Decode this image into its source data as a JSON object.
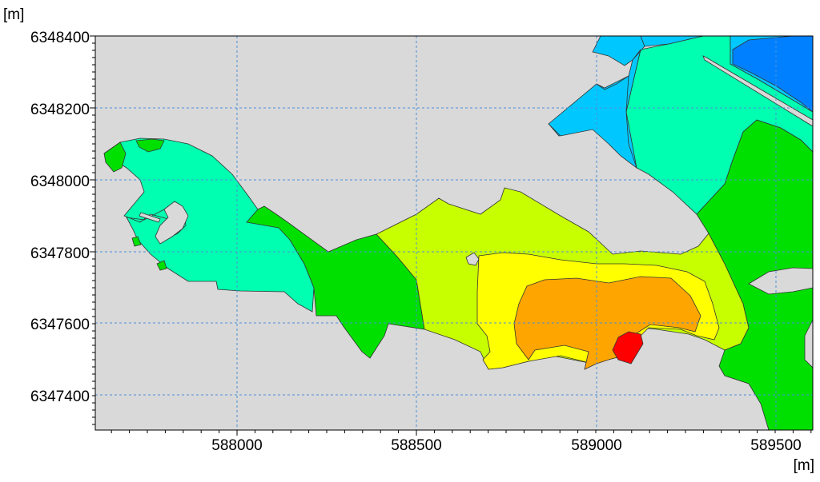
{
  "map": {
    "x_unit_label": "[m]",
    "y_unit_label": "[m]",
    "x_ticks": [
      "588000",
      "588500",
      "589000",
      "589500"
    ],
    "y_ticks": [
      "6348400",
      "6348200",
      "6348000",
      "6347800",
      "6347600",
      "6347400"
    ],
    "x_range": [
      587600,
      589600
    ],
    "y_range": [
      6347290,
      6348400
    ],
    "grid": true,
    "colors": {
      "background": "#d9d9d9",
      "grid": "#4a90d9",
      "red": "#ff0000",
      "orange": "#ffa500",
      "yellow": "#ffff00",
      "yellow_green": "#c8ff00",
      "green": "#00e000",
      "aqua_green": "#00ffb0",
      "light_blue": "#00c8ff",
      "blue": "#0080ff"
    }
  }
}
